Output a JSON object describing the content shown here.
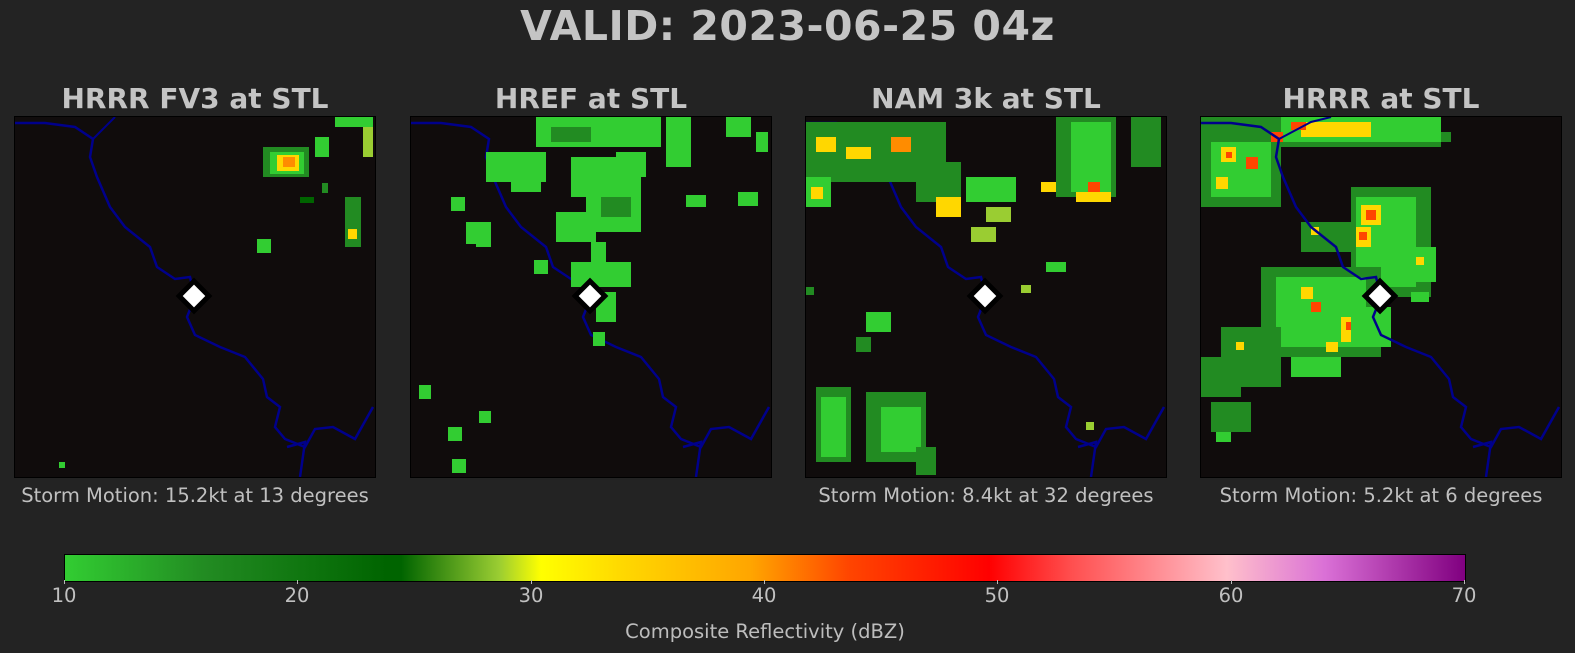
{
  "title": "VALID: 2023-06-25 04z",
  "panels": [
    {
      "title": "HRRR FV3 at STL",
      "caption": "Storm Motion: 15.2kt at 13 degrees"
    },
    {
      "title": "HREF at STL",
      "caption": ""
    },
    {
      "title": "NAM 3k at STL",
      "caption": "Storm Motion: 8.4kt at 32 degrees"
    },
    {
      "title": "HRRR at STL",
      "caption": "Storm Motion: 5.2kt at 6 degrees"
    }
  ],
  "colorbar": {
    "label": "Composite Reflectivity (dBZ)",
    "ticks": [
      "10",
      "20",
      "30",
      "40",
      "50",
      "60",
      "70"
    ],
    "range": [
      10,
      70
    ]
  },
  "colors": {
    "background": "#232323",
    "map_background": "#100c0c",
    "river": "#00008b",
    "marker": "#ffffff"
  },
  "icons": {
    "station_marker": "diamond-marker-icon"
  }
}
